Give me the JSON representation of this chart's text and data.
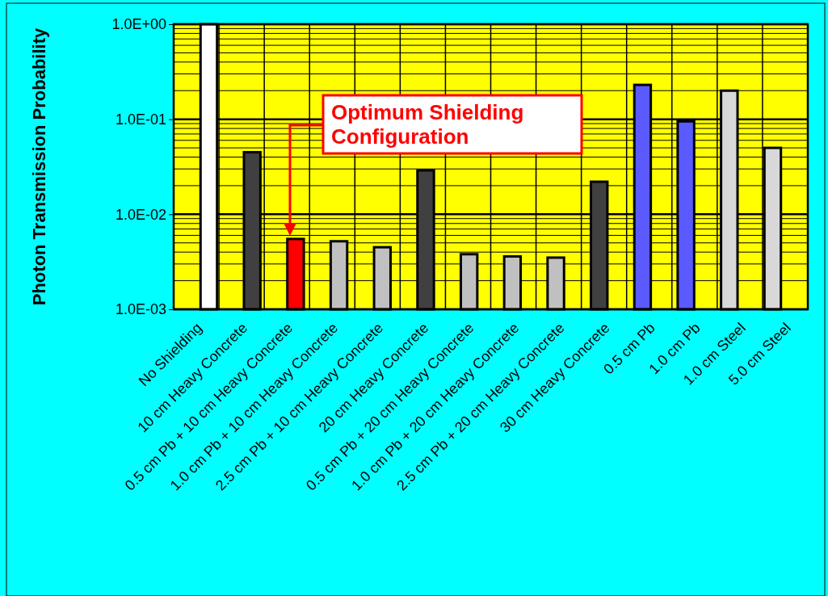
{
  "chart_data": {
    "type": "bar",
    "ylabel": "Photon Transmission Probability",
    "log": true,
    "grid": true,
    "categories": [
      "No Shielding",
      "10 cm Heavy Concrete",
      "0.5 cm Pb + 10 cm Heavy Concrete",
      "1.0 cm Pb + 10 cm Heavy Concrete",
      "2.5 cm Pb + 10 cm Heavy Concrete",
      "20 cm Heavy Concrete",
      "0.5 cm Pb + 20 cm Heavy Concrete",
      "1.0 cm Pb + 20 cm Heavy Concrete",
      "2.5 cm Pb + 20 cm Heavy Concrete",
      "30 cm Heavy Concrete",
      "0.5 cm Pb",
      "1.0 cm Pb",
      "1.0 cm Steel",
      "5.0 cm Steel"
    ],
    "values": [
      1.0,
      0.045,
      0.0055,
      0.0052,
      0.0045,
      0.029,
      0.0038,
      0.0036,
      0.0035,
      0.022,
      0.23,
      0.095,
      0.2,
      0.05
    ],
    "colors": [
      "#ffffff",
      "#404040",
      "#ff0000",
      "#c0c0c0",
      "#c0c0c0",
      "#404040",
      "#c0c0c0",
      "#c0c0c0",
      "#c0c0c0",
      "#404040",
      "#5a5aff",
      "#5a5aff",
      "#d8d8d8",
      "#d8d8d8"
    ],
    "ylim": [
      0.001,
      1
    ],
    "yticks": [
      {
        "value": 0.001,
        "label": "1.0E-03"
      },
      {
        "value": 0.01,
        "label": "1.0E-02"
      },
      {
        "value": 0.1,
        "label": "1.0E-01"
      },
      {
        "value": 1,
        "label": "1.0E+00"
      }
    ],
    "annotations": [
      "Optimum Shielding Configuration"
    ]
  }
}
